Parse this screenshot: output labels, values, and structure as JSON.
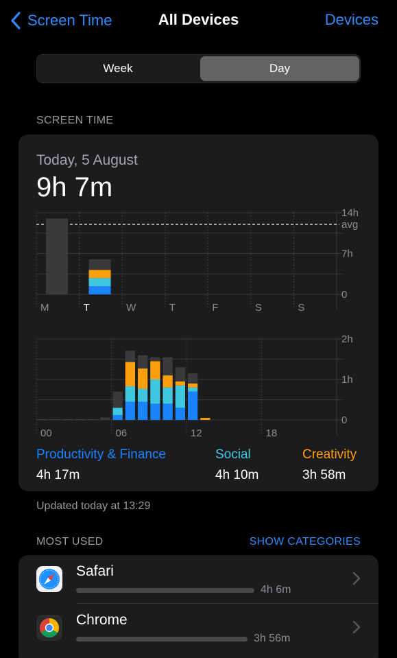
{
  "nav": {
    "back_label": "Screen Time",
    "title": "All Devices",
    "right_label": "Devices"
  },
  "segmented": {
    "options": [
      "Week",
      "Day"
    ],
    "selected": "Day"
  },
  "screen_time": {
    "section_label": "SCREEN TIME",
    "date": "Today, 5 August",
    "total": "9h 7m"
  },
  "categories": [
    {
      "label": "Productivity & Finance",
      "value": "4h 17m",
      "color": "#1a84ff"
    },
    {
      "label": "Social",
      "value": "4h 10m",
      "color": "#40c8e0"
    },
    {
      "label": "Creativity",
      "value": "3h 58m",
      "color": "#ff9f0a"
    }
  ],
  "colors": {
    "other": "#3a3a3c",
    "accent": "#2f8bf7"
  },
  "chart_data": [
    {
      "type": "bar",
      "categories": [
        "M",
        "T",
        "W",
        "T",
        "F",
        "S",
        "S"
      ],
      "y_ticks": [
        "14h",
        "avg",
        "7h",
        "0"
      ],
      "ylim": [
        0,
        14
      ],
      "avg": 12,
      "series": [
        {
          "name": "Productivity & Finance",
          "values": [
            0,
            1.4,
            0,
            0,
            0,
            0,
            0
          ]
        },
        {
          "name": "Social",
          "values": [
            0,
            1.4,
            0,
            0,
            0,
            0,
            0
          ]
        },
        {
          "name": "Creativity",
          "values": [
            0,
            1.4,
            0,
            0,
            0,
            0,
            0
          ]
        },
        {
          "name": "Other",
          "values": [
            13,
            1.8,
            0,
            0,
            0,
            0,
            0
          ]
        }
      ],
      "highlight": "T"
    },
    {
      "type": "bar",
      "x_ticks": [
        "00",
        "06",
        "12",
        "18"
      ],
      "y_ticks": [
        "2h",
        "1h",
        "0"
      ],
      "ylim": [
        0,
        2
      ],
      "hours": [
        0,
        1,
        2,
        3,
        4,
        5,
        6,
        7,
        8,
        9,
        10,
        11,
        12,
        13,
        14,
        15,
        16,
        17,
        18,
        19,
        20,
        21,
        22,
        23
      ],
      "series": [
        {
          "name": "Productivity & Finance",
          "values": [
            0,
            0,
            0,
            0,
            0,
            0,
            0.12,
            0.45,
            0.45,
            0.4,
            0.4,
            0.3,
            0.7,
            0,
            0,
            0,
            0,
            0,
            0,
            0,
            0,
            0,
            0,
            0
          ]
        },
        {
          "name": "Social",
          "values": [
            0,
            0,
            0,
            0,
            0,
            0,
            0.18,
            0.38,
            0.32,
            0.6,
            0.4,
            0.55,
            0.1,
            0,
            0,
            0,
            0,
            0,
            0,
            0,
            0,
            0,
            0,
            0
          ]
        },
        {
          "name": "Creativity",
          "values": [
            0,
            0,
            0,
            0,
            0,
            0,
            0,
            0.6,
            0.5,
            0.45,
            0.3,
            0.1,
            0.1,
            0.05,
            0,
            0,
            0,
            0,
            0,
            0,
            0,
            0,
            0,
            0
          ]
        },
        {
          "name": "Other",
          "values": [
            0.02,
            0.02,
            0.02,
            0.02,
            0.02,
            0.06,
            0.4,
            0.28,
            0.33,
            0.1,
            0.45,
            0.35,
            0.25,
            0,
            0,
            0,
            0,
            0,
            0,
            0,
            0,
            0,
            0,
            0
          ]
        }
      ]
    }
  ],
  "updated": "Updated today at 13:29",
  "most_used": {
    "section_label": "MOST USED",
    "show_categories": "SHOW CATEGORIES",
    "apps": [
      {
        "name": "Safari",
        "time": "4h 6m",
        "icon": "safari-icon",
        "fraction": 1.0
      },
      {
        "name": "Chrome",
        "time": "3h 56m",
        "icon": "chrome-icon",
        "fraction": 0.96
      }
    ]
  }
}
